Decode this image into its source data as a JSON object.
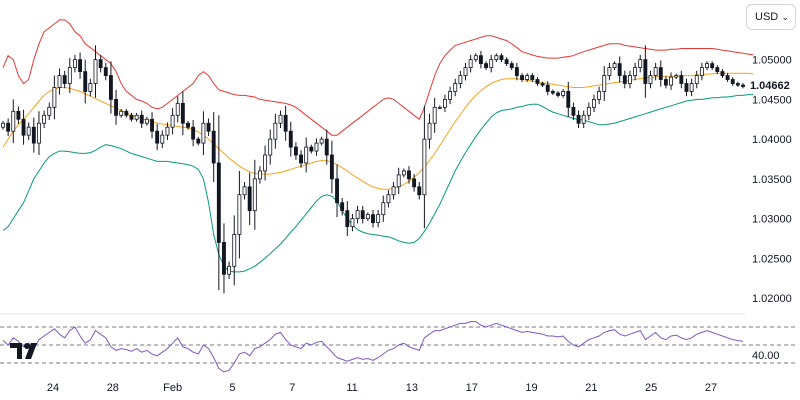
{
  "currency": {
    "label": "USD",
    "chevron_icon": "chevron-down-icon"
  },
  "last_price_label": "1.04662",
  "logo": {
    "icon": "tradingview-logo"
  },
  "colors": {
    "upper_band": "#e53935",
    "middle_band": "#f7a21b",
    "lower_band": "#089981",
    "rsi": "#7e57c2",
    "candle": "#131722",
    "grid": "#e0e3eb"
  },
  "chart_data": {
    "type": "candlestick",
    "indicators": [
      "Bollinger Bands",
      "RSI"
    ],
    "x_tick_labels": [
      "24",
      "28",
      "Feb",
      "5",
      "7",
      "11",
      "13",
      "17",
      "19",
      "21",
      "25",
      "27"
    ],
    "y_tick_labels": [
      "1.05000",
      "1.04500",
      "1.04000",
      "1.03500",
      "1.03000",
      "1.02500",
      "1.02000"
    ],
    "y_ticks": [
      1.05,
      1.045,
      1.04,
      1.035,
      1.03,
      1.025,
      1.02
    ],
    "ylim": [
      1.0185,
      1.0565
    ],
    "last_price": 1.04662,
    "close": [
      1.042,
      1.041,
      1.0435,
      1.0425,
      1.0405,
      1.0415,
      1.0395,
      1.042,
      1.043,
      1.044,
      1.0465,
      1.048,
      1.047,
      1.049,
      1.05,
      1.0485,
      1.046,
      1.047,
      1.05,
      1.049,
      1.048,
      1.045,
      1.043,
      1.0435,
      1.043,
      1.0425,
      1.043,
      1.042,
      1.0425,
      1.041,
      1.0395,
      1.0405,
      1.0415,
      1.043,
      1.0445,
      1.042,
      1.0415,
      1.04,
      1.0395,
      1.042,
      1.041,
      1.037,
      1.027,
      1.023,
      1.024,
      1.028,
      1.033,
      1.034,
      1.031,
      1.035,
      1.036,
      1.038,
      1.04,
      1.042,
      1.043,
      1.041,
      1.039,
      1.038,
      1.037,
      1.039,
      1.0385,
      1.0395,
      1.04,
      1.038,
      1.035,
      1.032,
      1.031,
      1.029,
      1.03,
      1.031,
      1.03,
      1.0305,
      1.0295,
      1.0305,
      1.032,
      1.033,
      1.034,
      1.0355,
      1.036,
      1.035,
      1.034,
      1.033,
      1.04,
      1.042,
      1.044,
      1.044,
      1.045,
      1.046,
      1.047,
      1.048,
      1.049,
      1.05,
      1.0505,
      1.0495,
      1.049,
      1.05,
      1.0505,
      1.05,
      1.0495,
      1.049,
      1.048,
      1.0475,
      1.048,
      1.0475,
      1.047,
      1.0468,
      1.046,
      1.0458,
      1.0455,
      1.046,
      1.044,
      1.043,
      1.042,
      1.043,
      1.044,
      1.045,
      1.046,
      1.048,
      1.049,
      1.0495,
      1.048,
      1.047,
      1.048,
      1.049,
      1.05,
      1.047,
      1.048,
      1.049,
      1.0475,
      1.0468,
      1.0478,
      1.048,
      1.047,
      1.046,
      1.047,
      1.048,
      1.049,
      1.0495,
      1.049,
      1.0485,
      1.048,
      1.0475,
      1.047,
      1.0468,
      1.04662
    ],
    "upper_band": [
      1.049,
      1.0505,
      1.05,
      1.048,
      1.047,
      1.0475,
      1.05,
      1.052,
      1.0535,
      1.054,
      1.0545,
      1.055,
      1.055,
      1.0545,
      1.0535,
      1.053,
      1.052,
      1.0515,
      1.051,
      1.0505,
      1.05,
      1.0495,
      1.0485,
      1.047,
      1.046,
      1.0455,
      1.045,
      1.0448,
      1.0445,
      1.044,
      1.0438,
      1.044,
      1.0445,
      1.045,
      1.0455,
      1.046,
      1.0465,
      1.047,
      1.048,
      1.0485,
      1.048,
      1.047,
      1.0462,
      1.046,
      1.0458,
      1.0456,
      1.0455,
      1.0455,
      1.0454,
      1.0453,
      1.045,
      1.0449,
      1.0448,
      1.0447,
      1.0446,
      1.0445,
      1.0443,
      1.044,
      1.0435,
      1.043,
      1.0425,
      1.042,
      1.0415,
      1.041,
      1.0405,
      1.0405,
      1.041,
      1.0415,
      1.042,
      1.0425,
      1.043,
      1.0435,
      1.044,
      1.0445,
      1.045,
      1.0452,
      1.045,
      1.0445,
      1.044,
      1.0435,
      1.043,
      1.0425,
      1.044,
      1.046,
      1.048,
      1.0495,
      1.0505,
      1.0512,
      1.0518,
      1.052,
      1.0522,
      1.0524,
      1.0526,
      1.0528,
      1.053,
      1.053,
      1.0528,
      1.0526,
      1.0524,
      1.052,
      1.0515,
      1.051,
      1.0508,
      1.0506,
      1.0504,
      1.0503,
      1.0502,
      1.0502,
      1.0502,
      1.0503,
      1.0504,
      1.0505,
      1.0508,
      1.051,
      1.0512,
      1.0514,
      1.0516,
      1.0518,
      1.052,
      1.052,
      1.052,
      1.0518,
      1.0517,
      1.0516,
      1.0515,
      1.0514,
      1.0513,
      1.0512,
      1.0512,
      1.0512,
      1.0513,
      1.0513,
      1.0514,
      1.0514,
      1.0514,
      1.0514,
      1.0514,
      1.0514,
      1.0514,
      1.0513,
      1.0512,
      1.0511,
      1.051,
      1.0509,
      1.0508,
      1.0507,
      1.0506
    ],
    "middle_band": [
      1.039,
      1.04,
      1.041,
      1.0418,
      1.0425,
      1.0432,
      1.044,
      1.0448,
      1.0455,
      1.046,
      1.0463,
      1.0465,
      1.0465,
      1.0464,
      1.0462,
      1.046,
      1.0457,
      1.0454,
      1.0451,
      1.0448,
      1.0445,
      1.0442,
      1.0439,
      1.0436,
      1.0433,
      1.043,
      1.0428,
      1.0426,
      1.0424,
      1.0422,
      1.042,
      1.0419,
      1.0418,
      1.0417,
      1.0416,
      1.0415,
      1.0414,
      1.0412,
      1.0409,
      1.0405,
      1.04,
      1.0394,
      1.0388,
      1.0382,
      1.0376,
      1.0371,
      1.0366,
      1.0362,
      1.0359,
      1.0357,
      1.0356,
      1.0356,
      1.0356,
      1.0357,
      1.0358,
      1.036,
      1.0362,
      1.0364,
      1.0366,
      1.0368,
      1.037,
      1.0372,
      1.0373,
      1.0373,
      1.0371,
      1.0368,
      1.0364,
      1.036,
      1.0355,
      1.0351,
      1.0347,
      1.0343,
      1.034,
      1.0338,
      1.0337,
      1.0337,
      1.0338,
      1.034,
      1.0343,
      1.0347,
      1.0352,
      1.0358,
      1.0365,
      1.0373,
      1.0382,
      1.0392,
      1.0402,
      1.0412,
      1.0422,
      1.0431,
      1.044,
      1.0448,
      1.0455,
      1.0461,
      1.0466,
      1.047,
      1.0473,
      1.0475,
      1.0476,
      1.0476,
      1.0476,
      1.0475,
      1.0474,
      1.0473,
      1.0472,
      1.0471,
      1.047,
      1.0469,
      1.0468,
      1.0467,
      1.0466,
      1.0465,
      1.0465,
      1.0465,
      1.0466,
      1.0467,
      1.0468,
      1.0469,
      1.047,
      1.0471,
      1.0472,
      1.0473,
      1.0474,
      1.0475,
      1.0476,
      1.0477,
      1.0478,
      1.0478,
      1.0479,
      1.0479,
      1.0479,
      1.0479,
      1.048,
      1.048,
      1.048,
      1.0481,
      1.0481,
      1.0482,
      1.0482,
      1.0483,
      1.0483,
      1.0483,
      1.0483,
      1.0483,
      1.0483,
      1.0483,
      1.0482
    ],
    "lower_band": [
      1.0285,
      1.029,
      1.03,
      1.031,
      1.032,
      1.0335,
      1.035,
      1.036,
      1.037,
      1.0378,
      1.0382,
      1.0385,
      1.0385,
      1.0384,
      1.0383,
      1.0382,
      1.0382,
      1.0383,
      1.0386,
      1.039,
      1.0393,
      1.0392,
      1.039,
      1.0388,
      1.0385,
      1.0382,
      1.038,
      1.0378,
      1.0376,
      1.0374,
      1.0372,
      1.0372,
      1.0372,
      1.0371,
      1.037,
      1.0369,
      1.0368,
      1.0366,
      1.0362,
      1.035,
      1.032,
      1.028,
      1.0255,
      1.024,
      1.0234,
      1.0233,
      1.0233,
      1.0234,
      1.0237,
      1.024,
      1.0245,
      1.025,
      1.0256,
      1.0262,
      1.0268,
      1.0275,
      1.0283,
      1.029,
      1.0298,
      1.0306,
      1.0314,
      1.0322,
      1.0328,
      1.033,
      1.0328,
      1.0322,
      1.031,
      1.03,
      1.0292,
      1.0286,
      1.0283,
      1.0281,
      1.028,
      1.0279,
      1.0278,
      1.0277,
      1.0275,
      1.0272,
      1.027,
      1.0269,
      1.027,
      1.0275,
      1.0284,
      1.0294,
      1.0306,
      1.0318,
      1.0332,
      1.0346,
      1.036,
      1.0372,
      1.0383,
      1.0393,
      1.0403,
      1.0412,
      1.042,
      1.0428,
      1.0433,
      1.0436,
      1.0437,
      1.0438,
      1.044,
      1.0441,
      1.0443,
      1.0444,
      1.0444,
      1.0441,
      1.0437,
      1.0434,
      1.0432,
      1.043,
      1.0428,
      1.0426,
      1.0425,
      1.0424,
      1.0422,
      1.042,
      1.0418,
      1.0418,
      1.0419,
      1.042,
      1.0422,
      1.0424,
      1.0426,
      1.0428,
      1.043,
      1.0432,
      1.0434,
      1.0436,
      1.0438,
      1.044,
      1.0442,
      1.0444,
      1.0446,
      1.0448,
      1.0449,
      1.045,
      1.045,
      1.0451,
      1.0452,
      1.0452,
      1.0453,
      1.0453,
      1.0454,
      1.0455,
      1.0455,
      1.0456,
      1.0456
    ],
    "rsi": {
      "tick_label": "40.00",
      "levels": [
        70,
        50,
        30
      ],
      "values": [
        55,
        50,
        58,
        54,
        48,
        52,
        45,
        56,
        60,
        64,
        68,
        62,
        58,
        66,
        70,
        60,
        52,
        56,
        66,
        62,
        58,
        48,
        44,
        46,
        45,
        43,
        46,
        42,
        44,
        40,
        38,
        42,
        46,
        52,
        58,
        48,
        46,
        42,
        40,
        50,
        46,
        36,
        24,
        20,
        22,
        30,
        40,
        42,
        38,
        46,
        48,
        52,
        56,
        62,
        64,
        56,
        50,
        48,
        46,
        52,
        50,
        53,
        54,
        48,
        42,
        36,
        34,
        32,
        34,
        36,
        34,
        35,
        33,
        36,
        40,
        44,
        46,
        50,
        52,
        48,
        46,
        44,
        58,
        62,
        66,
        66,
        68,
        70,
        72,
        74,
        74,
        76,
        76,
        72,
        70,
        72,
        74,
        72,
        70,
        68,
        66,
        64,
        65,
        64,
        63,
        62,
        60,
        60,
        59,
        60,
        54,
        50,
        48,
        52,
        56,
        58,
        60,
        64,
        66,
        67,
        62,
        60,
        62,
        64,
        66,
        56,
        60,
        64,
        58,
        56,
        60,
        61,
        58,
        56,
        58,
        62,
        64,
        66,
        64,
        62,
        60,
        58,
        56,
        55,
        54
      ]
    }
  }
}
